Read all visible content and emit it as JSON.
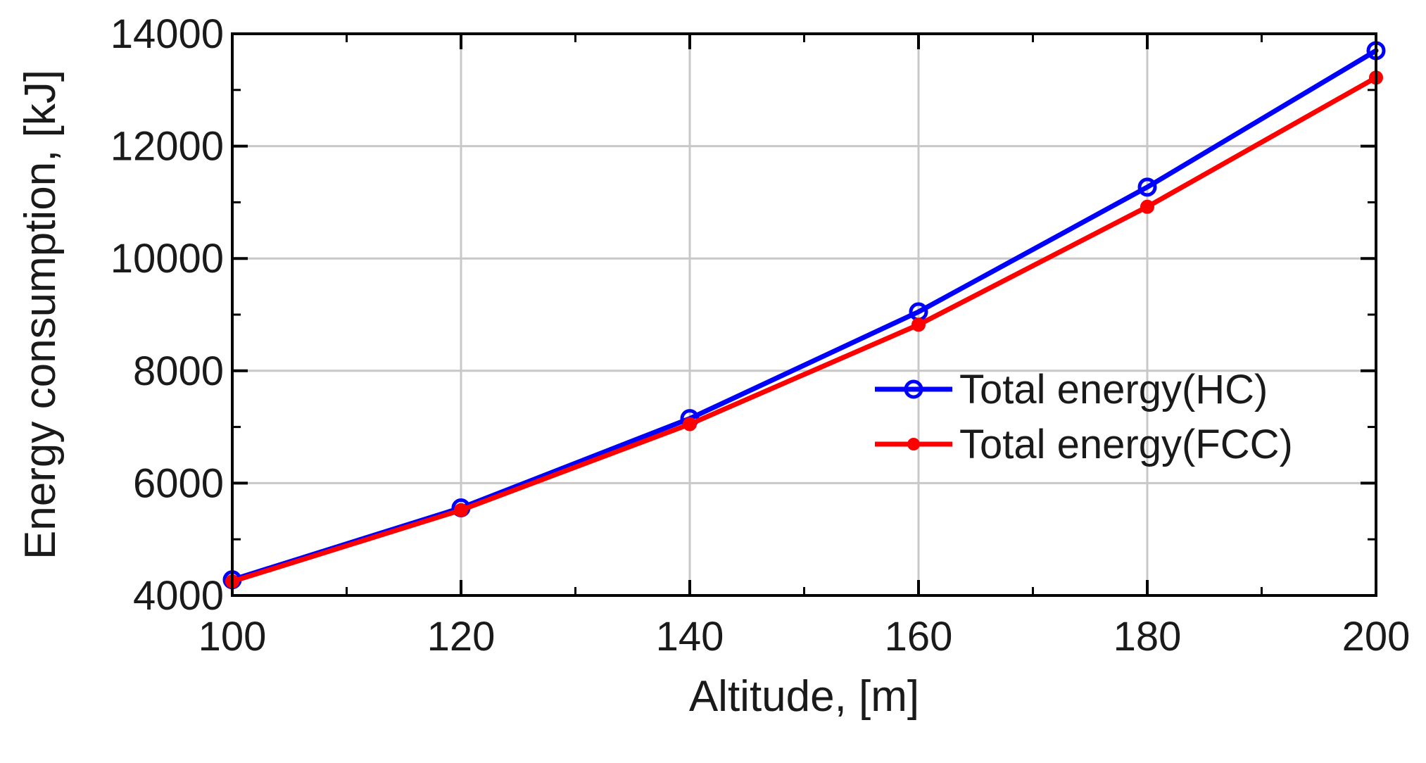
{
  "chart_data": {
    "type": "line",
    "title": "",
    "xlabel": "Altitude, [m]",
    "ylabel": "Energy consumption, [kJ]",
    "xlim": [
      100,
      200
    ],
    "ylim": [
      4000,
      14000
    ],
    "x_ticks": [
      "100",
      "120",
      "140",
      "160",
      "180",
      "200"
    ],
    "y_ticks": [
      "4000",
      "6000",
      "8000",
      "10000",
      "12000",
      "14000"
    ],
    "grid": true,
    "legend_position": "center-right",
    "x": [
      100,
      120,
      140,
      160,
      180,
      200
    ],
    "series": [
      {
        "name": "Total energy(HC)",
        "color": "#0000ff",
        "marker": "open-circle",
        "values": [
          4280,
          5560,
          7150,
          9050,
          11270,
          13700
        ]
      },
      {
        "name": "Total energy(FCC)",
        "color": "#ff0000",
        "marker": "filled-circle",
        "values": [
          4250,
          5520,
          7050,
          8820,
          10920,
          13220
        ]
      }
    ]
  }
}
